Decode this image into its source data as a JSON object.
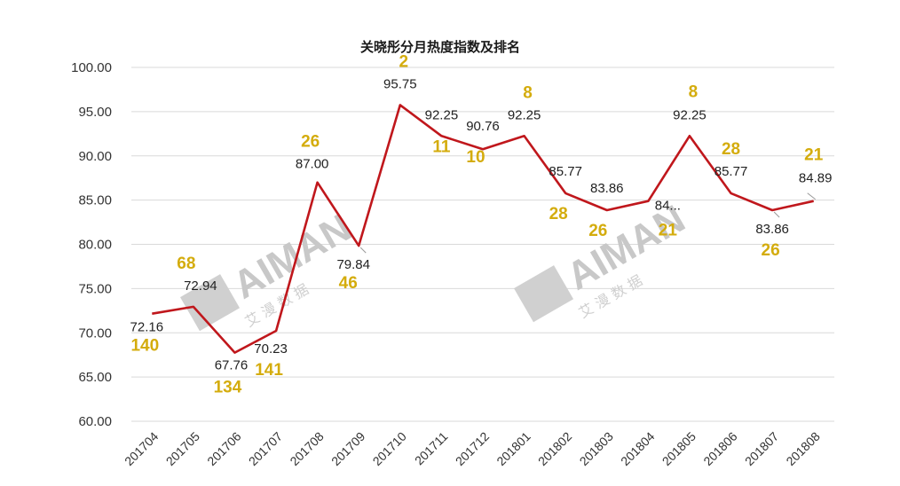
{
  "chart_data": {
    "type": "line",
    "title": "关晓彤分月热度指数及排名",
    "xlabel": "",
    "ylabel": "",
    "ylim": [
      60,
      100
    ],
    "yticks": [
      "60.00",
      "65.00",
      "70.00",
      "75.00",
      "80.00",
      "85.00",
      "90.00",
      "95.00",
      "100.00"
    ],
    "grid": true,
    "categories": [
      "201704",
      "201705",
      "201706",
      "201707",
      "201708",
      "201709",
      "201710",
      "201711",
      "201712",
      "201801",
      "201802",
      "201803",
      "201804",
      "201805",
      "201806",
      "201807",
      "201808"
    ],
    "values": [
      72.16,
      72.94,
      67.76,
      70.23,
      87.0,
      79.84,
      95.75,
      92.25,
      90.76,
      92.25,
      85.77,
      83.86,
      84.89,
      92.25,
      85.77,
      83.86,
      84.89
    ],
    "value_labels": [
      "72.16",
      "72.94",
      "67.76",
      "70.23",
      "87.00",
      "79.84",
      "95.75",
      "92.25",
      "90.76",
      "92.25",
      "85.77",
      "83.86",
      "84...",
      "92.25",
      "85.77",
      "83.86",
      "84.89"
    ],
    "rank_labels": [
      "140",
      "68",
      "134",
      "141",
      "26",
      "46",
      "2",
      "11",
      "10",
      "8",
      "28",
      "26",
      "21",
      "8",
      "28",
      "26",
      "21"
    ],
    "line_color": "#c0171c",
    "rank_color": "#d4ac0d",
    "grid_color": "#d9d9d9"
  },
  "watermark": {
    "logo_text": "AIMAN",
    "sub_text": "艾 漫 数 据",
    "color": "#c8c8c8"
  }
}
